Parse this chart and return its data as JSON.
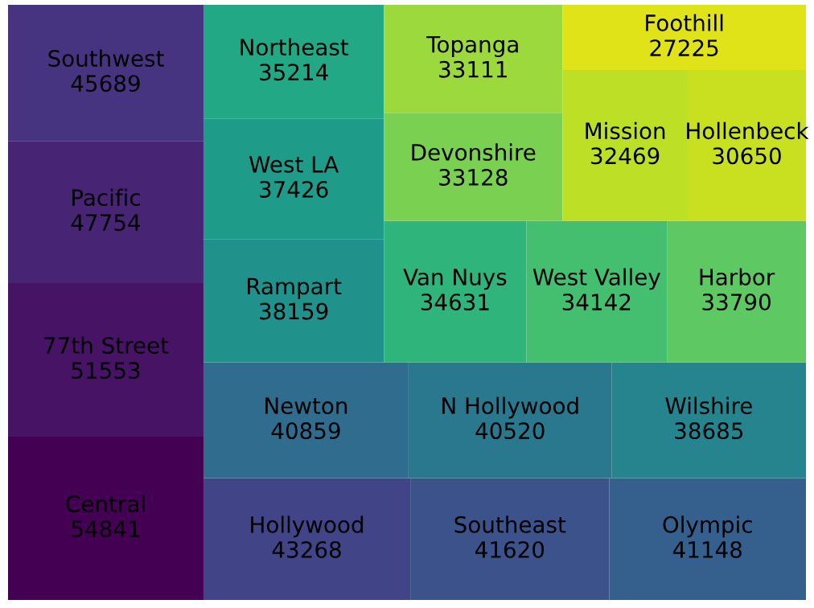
{
  "chart_data": {
    "type": "other",
    "categories": [
      "Central",
      "77th Street",
      "Pacific",
      "Southwest",
      "Hollywood",
      "Southeast",
      "Olympic",
      "Newton",
      "N Hollywood",
      "Wilshire",
      "Rampart",
      "West LA",
      "Northeast",
      "Van Nuys",
      "West Valley",
      "Harbor",
      "Devonshire",
      "Topanga",
      "Mission",
      "Hollenbeck",
      "Foothill"
    ],
    "values": [
      54841,
      51553,
      47754,
      45689,
      43268,
      41620,
      41148,
      40859,
      40520,
      38685,
      38159,
      37426,
      35214,
      34631,
      34142,
      33790,
      33128,
      33111,
      32469,
      30650,
      27225
    ],
    "colors": [
      "#440154",
      "#471365",
      "#482475",
      "#463480",
      "#414487",
      "#3b528b",
      "#355f8d",
      "#2f6c8e",
      "#2a788e",
      "#25848e",
      "#21918c",
      "#1e9c89",
      "#22a884",
      "#2fb47c",
      "#44bf70",
      "#5ec962",
      "#7ad151",
      "#9bd93c",
      "#bddf26",
      "#c8e020",
      "#dfe318"
    ],
    "data_labels": true
  }
}
